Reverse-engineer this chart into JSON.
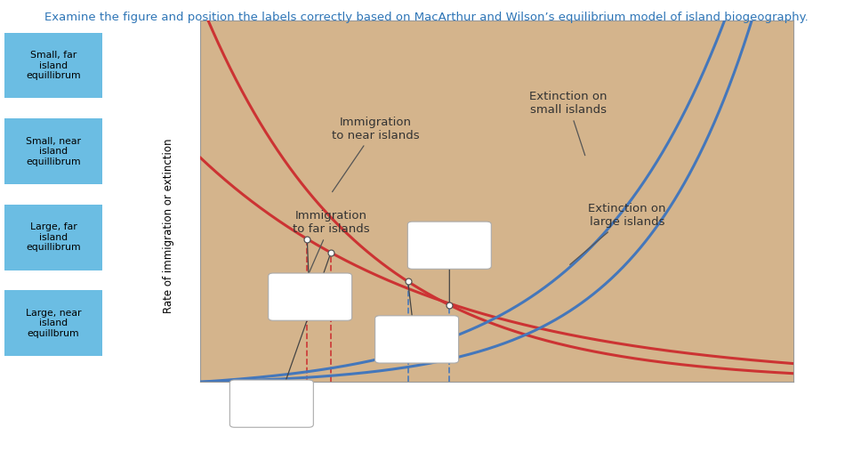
{
  "title": "Examine the figure and position the labels correctly based on MacArthur and Wilson’s equilibrium model of island biogeography.",
  "title_color": "#2E75B6",
  "plot_bg": "#D4B48C",
  "ylabel": "Rate of immigration or extinction",
  "sidebar_labels": [
    "Small, far\nisland\nequillibrum",
    "Small, near\nisland\nequillibrum",
    "Large, far\nisland\nequillibrum",
    "Large, near\nisland\nequillbrum"
  ],
  "sidebar_box_color": "#6BBDE3",
  "imm_near_a": 1.05,
  "imm_near_b": 3.8,
  "imm_far_a": 0.62,
  "imm_far_b": 2.5,
  "ext_small_a": 0.008,
  "ext_small_k": 5.2,
  "ext_large_a": 0.025,
  "ext_large_k": 4.2,
  "red_color": "#CC3333",
  "blue_color": "#4477BB",
  "ann_color": "#555555",
  "dot_color": "white",
  "dot_edge": "#555555",
  "box_edge": "#aaaaaa",
  "dashed_red": "#CC3333",
  "dashed_blue": "#4477BB"
}
